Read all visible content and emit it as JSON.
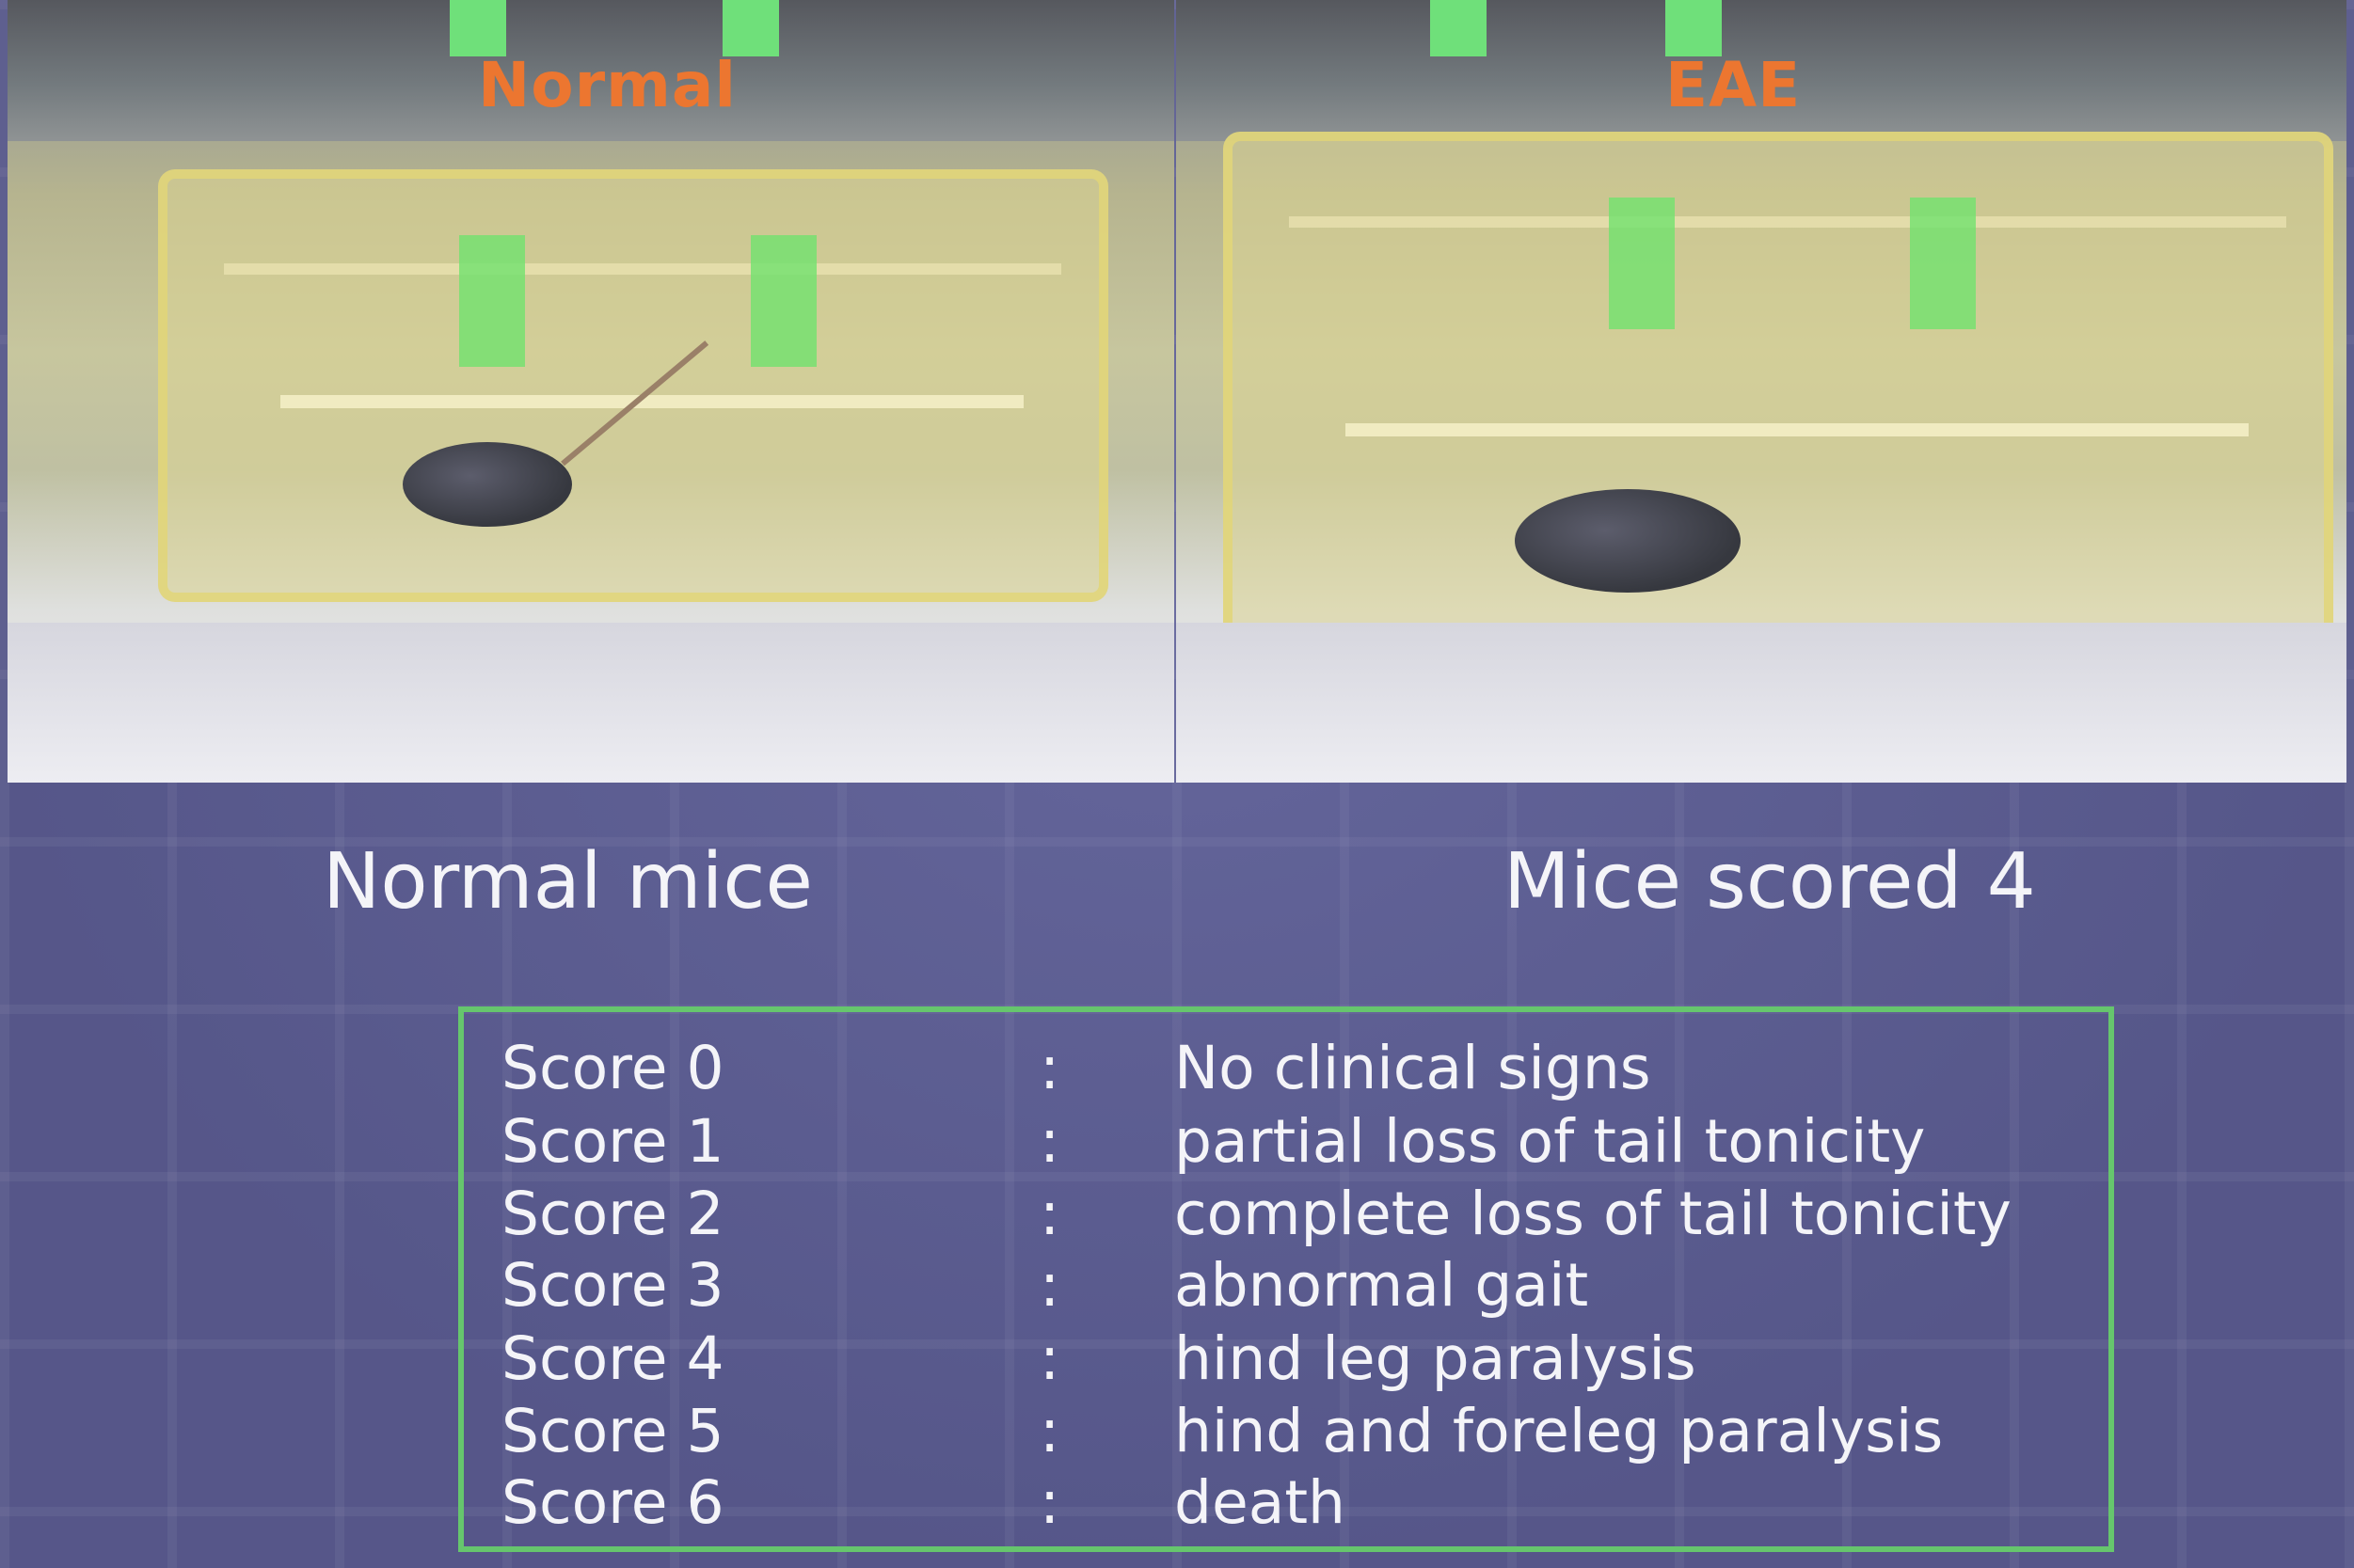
{
  "photos": {
    "left_label": "Normal",
    "right_label": "EAE"
  },
  "captions": {
    "left": "Normal mice",
    "right": "Mice scored 4"
  },
  "score_legend": {
    "separator": ":",
    "rows": [
      {
        "label": "Score 0",
        "description": "No clinical signs"
      },
      {
        "label": "Score 1",
        "description": "partial loss of tail tonicity"
      },
      {
        "label": "Score 2",
        "description": "complete loss of tail tonicity"
      },
      {
        "label": "Score 3",
        "description": "abnormal gait"
      },
      {
        "label": "Score 4",
        "description": "hind leg paralysis"
      },
      {
        "label": "Score 5",
        "description": "hind and foreleg paralysis"
      },
      {
        "label": "Score 6",
        "description": "death"
      }
    ]
  },
  "colors": {
    "background": "#5a5b8e",
    "photo_label": "#ec7630",
    "legend_border": "#66c66d",
    "text": "#f4f4f8"
  }
}
